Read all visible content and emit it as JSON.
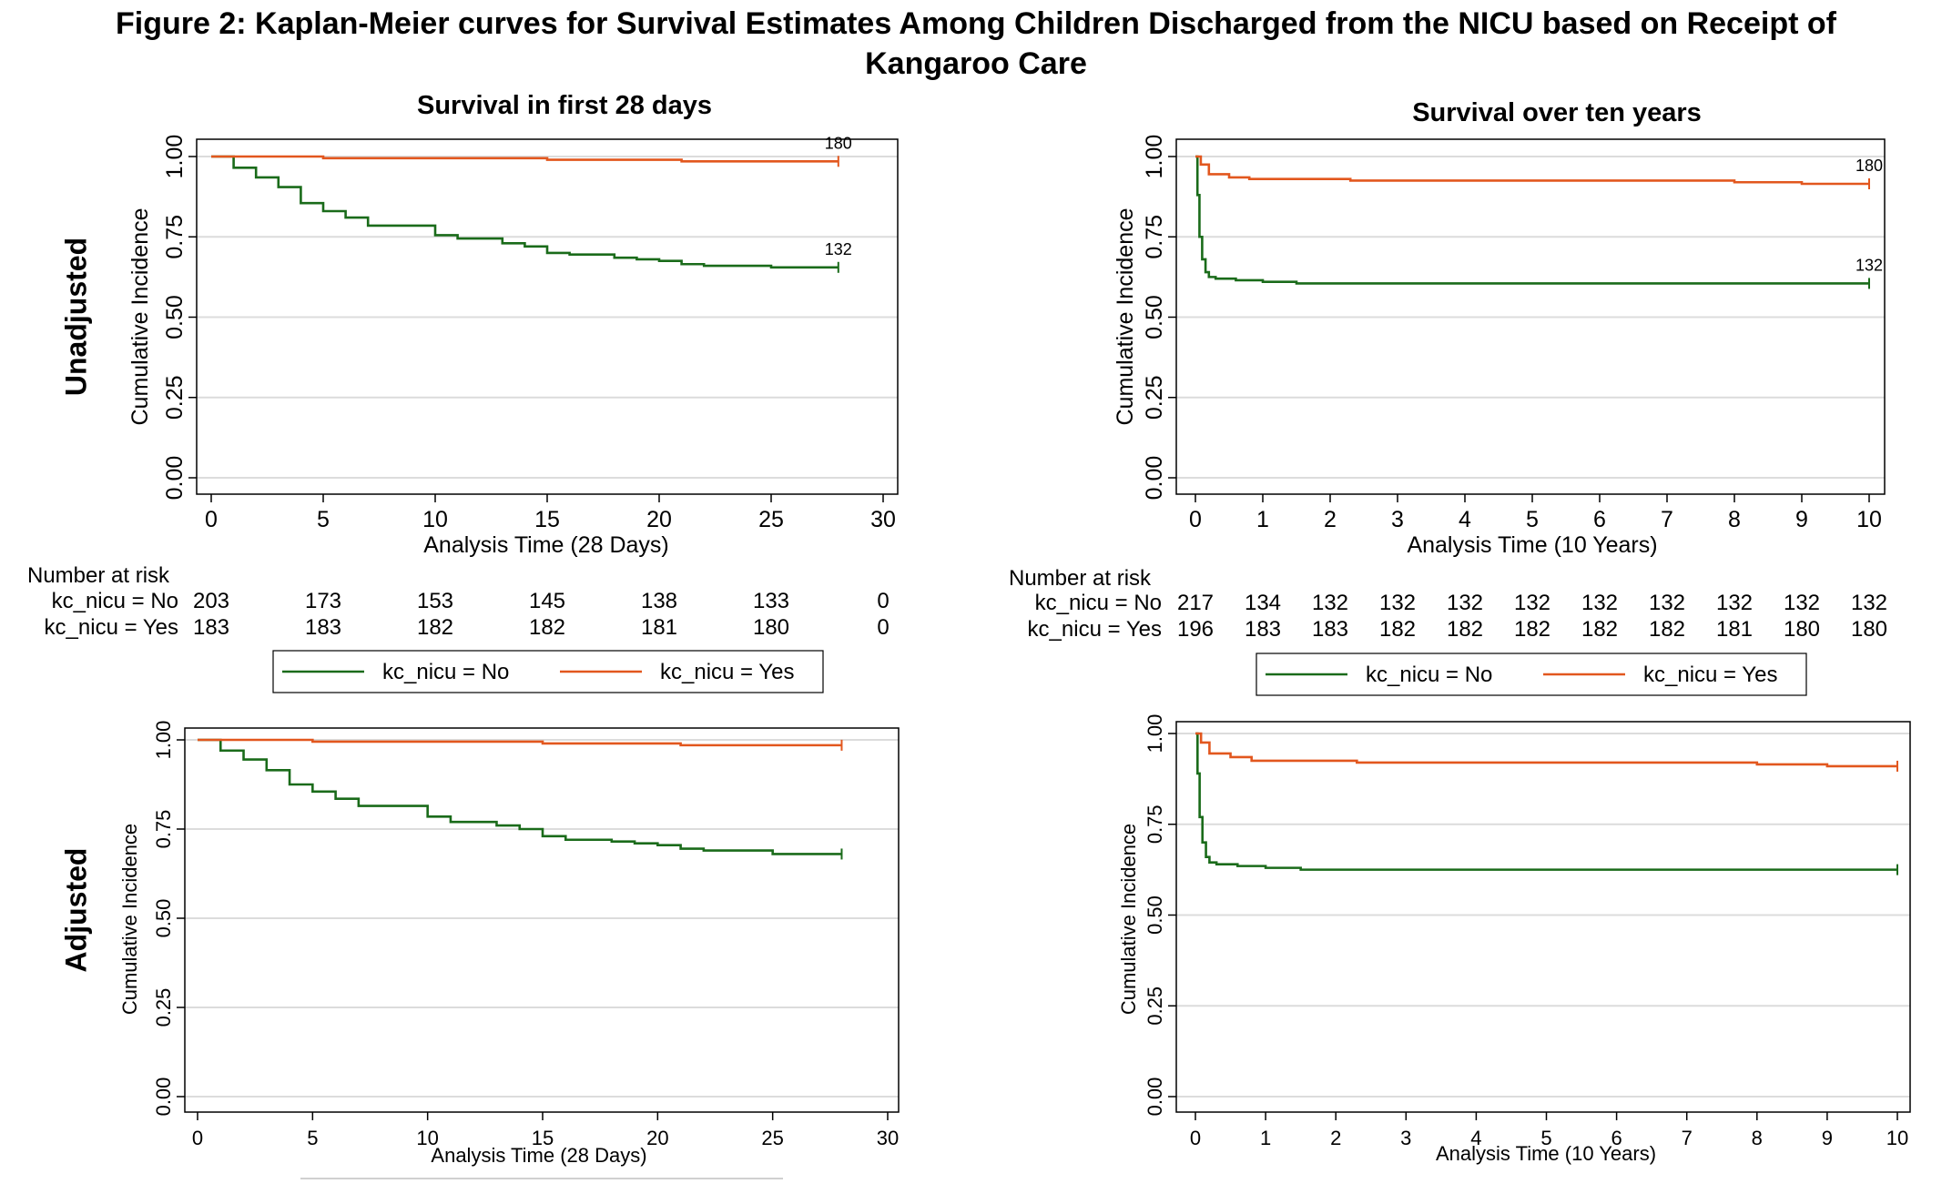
{
  "figure": {
    "title_line1": "Figure 2: Kaplan-Meier curves for Survival Estimates Among Children Discharged from the NICU based on Receipt of",
    "title_line2": "Kangaroo Care",
    "row_labels": [
      "Unadjusted",
      "Adjusted"
    ]
  },
  "colors": {
    "no": "#1a6b1a",
    "yes": "#e2571e",
    "grid": "#dcdcdc",
    "axis": "#000000"
  },
  "legend": {
    "labels": [
      "kc_nicu = No",
      "kc_nicu = Yes"
    ]
  },
  "chart_data": [
    {
      "type": "line",
      "panel": "unadjusted-28days",
      "title": "Survival in first 28 days",
      "xlabel": "Analysis Time (28 Days)",
      "ylabel": "Cumulative Incidence",
      "xlim": [
        0,
        30
      ],
      "ylim": [
        0,
        1
      ],
      "xticks": [
        0,
        5,
        10,
        15,
        20,
        25,
        30
      ],
      "yticks": [
        "0.00",
        "0.25",
        "0.50",
        "0.75",
        "1.00"
      ],
      "grid": true,
      "series": [
        {
          "name": "kc_nicu = No",
          "end_label": "132",
          "x": [
            0,
            1,
            2,
            3,
            4,
            5,
            6,
            7,
            9,
            10,
            11,
            12,
            13,
            14,
            15,
            16,
            18,
            19,
            20,
            21,
            22,
            24,
            25,
            28
          ],
          "y": [
            1.0,
            0.965,
            0.935,
            0.905,
            0.855,
            0.83,
            0.81,
            0.785,
            0.785,
            0.755,
            0.745,
            0.745,
            0.73,
            0.72,
            0.7,
            0.695,
            0.685,
            0.68,
            0.675,
            0.665,
            0.66,
            0.66,
            0.655,
            0.655
          ]
        },
        {
          "name": "kc_nicu = Yes",
          "end_label": "180",
          "x": [
            0,
            5,
            15,
            21,
            28
          ],
          "y": [
            1.0,
            0.995,
            0.99,
            0.985,
            0.985
          ]
        }
      ],
      "at_risk": {
        "header": "Number at risk",
        "x": [
          0,
          5,
          10,
          15,
          20,
          25,
          30
        ],
        "rows": [
          {
            "label": "kc_nicu = No",
            "values": [
              "203",
              "173",
              "153",
              "145",
              "138",
              "133",
              "0"
            ]
          },
          {
            "label": "kc_nicu = Yes",
            "values": [
              "183",
              "183",
              "182",
              "182",
              "181",
              "180",
              "0"
            ]
          }
        ]
      },
      "legend_position": "bottom"
    },
    {
      "type": "line",
      "panel": "unadjusted-10years",
      "title": "Survival over ten years",
      "xlabel": "Analysis Time (10 Years)",
      "ylabel": "Cumulative Incidence",
      "xlim": [
        0,
        10
      ],
      "ylim": [
        0,
        1
      ],
      "xticks": [
        0,
        1,
        2,
        3,
        4,
        5,
        6,
        7,
        8,
        9,
        10
      ],
      "yticks": [
        "0.00",
        "0.25",
        "0.50",
        "0.75",
        "1.00"
      ],
      "grid": true,
      "series": [
        {
          "name": "kc_nicu = No",
          "end_label": "132",
          "x": [
            0,
            0.03,
            0.06,
            0.1,
            0.15,
            0.2,
            0.3,
            0.6,
            1.0,
            1.5,
            10
          ],
          "y": [
            1.0,
            0.88,
            0.75,
            0.68,
            0.64,
            0.625,
            0.62,
            0.615,
            0.61,
            0.605,
            0.605
          ]
        },
        {
          "name": "kc_nicu = Yes",
          "end_label": "180",
          "x": [
            0,
            0.08,
            0.2,
            0.5,
            0.8,
            2.3,
            8,
            9,
            10
          ],
          "y": [
            1.0,
            0.975,
            0.945,
            0.935,
            0.93,
            0.925,
            0.92,
            0.915,
            0.915
          ]
        }
      ],
      "at_risk": {
        "header": "Number at risk",
        "x": [
          0,
          1,
          2,
          3,
          4,
          5,
          6,
          7,
          8,
          9,
          10
        ],
        "rows": [
          {
            "label": "kc_nicu = No",
            "values": [
              "217",
              "134",
              "132",
              "132",
              "132",
              "132",
              "132",
              "132",
              "132",
              "132",
              "132"
            ]
          },
          {
            "label": "kc_nicu = Yes",
            "values": [
              "196",
              "183",
              "183",
              "182",
              "182",
              "182",
              "182",
              "182",
              "181",
              "180",
              "180"
            ]
          }
        ]
      },
      "legend_position": "bottom"
    },
    {
      "type": "line",
      "panel": "adjusted-28days",
      "title": "",
      "xlabel": "Analysis Time (28 Days)",
      "ylabel": "Cumulative Incidence",
      "xlim": [
        0,
        30
      ],
      "ylim": [
        0,
        1
      ],
      "xticks": [
        0,
        5,
        10,
        15,
        20,
        25,
        30
      ],
      "yticks": [
        "0.00",
        "0.25",
        "0.50",
        "0.75",
        "1.00"
      ],
      "grid": true,
      "series": [
        {
          "name": "kc_nicu = No",
          "x": [
            0,
            1,
            2,
            3,
            4,
            5,
            6,
            7,
            9,
            10,
            11,
            12,
            13,
            14,
            15,
            16,
            18,
            19,
            20,
            21,
            22,
            24,
            25,
            28
          ],
          "y": [
            1.0,
            0.97,
            0.945,
            0.915,
            0.875,
            0.855,
            0.835,
            0.815,
            0.815,
            0.785,
            0.77,
            0.77,
            0.76,
            0.75,
            0.73,
            0.72,
            0.715,
            0.71,
            0.705,
            0.695,
            0.69,
            0.69,
            0.68,
            0.68
          ]
        },
        {
          "name": "kc_nicu = Yes",
          "x": [
            0,
            5,
            15,
            21,
            28
          ],
          "y": [
            1.0,
            0.995,
            0.99,
            0.985,
            0.985
          ]
        }
      ]
    },
    {
      "type": "line",
      "panel": "adjusted-10years",
      "title": "",
      "xlabel": "Analysis Time (10 Years)",
      "ylabel": "Cumulative Incidence",
      "xlim": [
        0,
        10
      ],
      "ylim": [
        0,
        1
      ],
      "xticks": [
        0,
        1,
        2,
        3,
        4,
        5,
        6,
        7,
        8,
        9,
        10
      ],
      "yticks": [
        "0.00",
        "0.25",
        "0.50",
        "0.75",
        "1.00"
      ],
      "grid": true,
      "series": [
        {
          "name": "kc_nicu = No",
          "x": [
            0,
            0.03,
            0.06,
            0.1,
            0.15,
            0.2,
            0.3,
            0.6,
            1.0,
            1.5,
            10
          ],
          "y": [
            1.0,
            0.89,
            0.77,
            0.7,
            0.66,
            0.645,
            0.64,
            0.635,
            0.63,
            0.625,
            0.625
          ]
        },
        {
          "name": "kc_nicu = Yes",
          "x": [
            0,
            0.08,
            0.2,
            0.5,
            0.8,
            2.3,
            8,
            9,
            10
          ],
          "y": [
            1.0,
            0.975,
            0.945,
            0.935,
            0.925,
            0.92,
            0.915,
            0.91,
            0.91
          ]
        }
      ]
    }
  ]
}
